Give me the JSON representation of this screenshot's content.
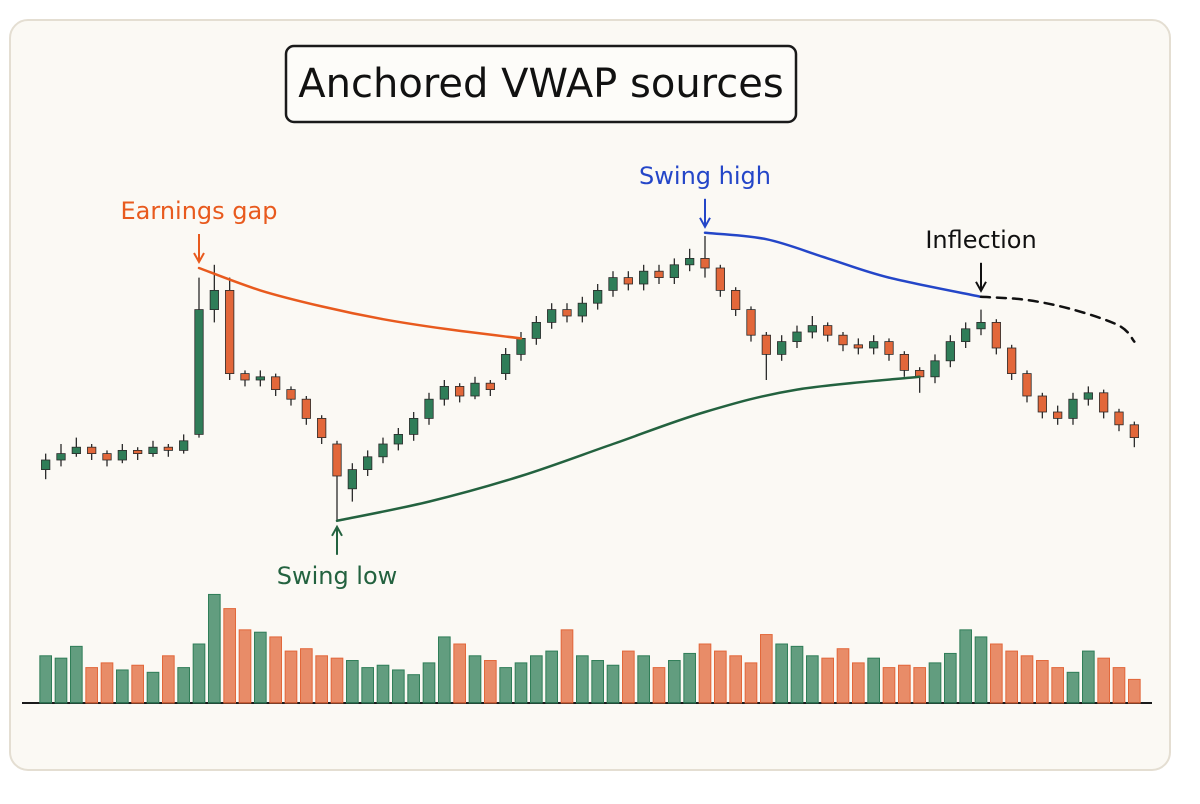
{
  "chart_data": {
    "type": "candlestick",
    "title": "Anchored VWAP sources",
    "up_color": "#2f7d58",
    "down_color": "#e2673a",
    "xlim": [
      -0.5,
      71.5
    ],
    "ylim": [
      0,
      100
    ],
    "open": [
      22,
      25,
      27,
      29,
      27,
      25,
      28,
      27,
      29,
      28,
      33,
      72,
      78,
      52,
      50,
      51,
      47,
      44,
      38,
      30,
      16,
      22,
      26,
      30,
      33,
      38,
      44,
      48,
      45,
      49,
      52,
      58,
      63,
      68,
      72,
      70,
      74,
      78,
      82,
      80,
      84,
      82,
      86,
      88,
      85,
      78,
      72,
      64,
      58,
      62,
      65,
      67,
      64,
      61,
      60,
      62,
      58,
      53,
      51,
      56,
      62,
      66,
      68,
      60,
      52,
      45,
      40,
      38,
      44,
      46,
      40,
      36
    ],
    "high": [
      27,
      30,
      32,
      30,
      28,
      30,
      29,
      31,
      30,
      33,
      82,
      86,
      82,
      53,
      53,
      52,
      48,
      45,
      39,
      31,
      24,
      28,
      32,
      35,
      40,
      46,
      50,
      49,
      51,
      50,
      60,
      65,
      70,
      74,
      74,
      76,
      80,
      84,
      84,
      86,
      86,
      88,
      91,
      95,
      86,
      79,
      73,
      65,
      64,
      67,
      70,
      68,
      65,
      63,
      64,
      63,
      59,
      54,
      58,
      64,
      68,
      72,
      69,
      61,
      53,
      46,
      42,
      46,
      48,
      47,
      41,
      37
    ],
    "low": [
      19,
      23,
      26,
      25,
      23,
      24,
      25,
      26,
      26,
      27,
      32,
      68,
      50,
      48,
      48,
      45,
      42,
      36,
      30,
      6,
      12,
      20,
      24,
      28,
      31,
      36,
      42,
      43,
      44,
      45,
      50,
      56,
      61,
      66,
      68,
      68,
      72,
      76,
      78,
      78,
      80,
      80,
      84,
      82,
      76,
      70,
      62,
      50,
      56,
      60,
      63,
      62,
      59,
      58,
      58,
      56,
      51,
      46,
      49,
      54,
      60,
      64,
      58,
      50,
      43,
      38,
      36,
      36,
      42,
      38,
      34,
      29
    ],
    "close": [
      25,
      27,
      29,
      27,
      25,
      28,
      27,
      29,
      28,
      31,
      72,
      78,
      52,
      50,
      51,
      47,
      44,
      38,
      32,
      20,
      22,
      26,
      30,
      33,
      38,
      44,
      48,
      45,
      49,
      47,
      58,
      63,
      68,
      72,
      70,
      74,
      78,
      82,
      80,
      84,
      82,
      86,
      88,
      85,
      78,
      72,
      64,
      58,
      62,
      65,
      67,
      64,
      61,
      60,
      62,
      58,
      53,
      51,
      56,
      62,
      66,
      68,
      60,
      52,
      45,
      40,
      38,
      44,
      46,
      40,
      36,
      32
    ],
    "volume": {
      "ylim": [
        0,
        100
      ],
      "values": [
        40,
        38,
        48,
        30,
        34,
        28,
        32,
        26,
        40,
        30,
        50,
        92,
        80,
        62,
        60,
        56,
        44,
        46,
        40,
        38,
        36,
        30,
        32,
        28,
        24,
        34,
        56,
        50,
        40,
        36,
        30,
        34,
        40,
        44,
        62,
        40,
        36,
        32,
        44,
        40,
        30,
        36,
        42,
        50,
        44,
        40,
        34,
        58,
        50,
        48,
        40,
        38,
        46,
        34,
        38,
        30,
        32,
        30,
        34,
        42,
        62,
        56,
        50,
        44,
        40,
        36,
        30,
        26,
        44,
        38,
        30,
        20
      ]
    },
    "vwaps": [
      {
        "name": "Earnings gap",
        "color": "#e85a1e",
        "dashed": false,
        "x": [
          10,
          14,
          18,
          22,
          26,
          31
        ],
        "values": [
          85,
          78,
          73,
          69,
          66,
          63
        ]
      },
      {
        "name": "Swing low",
        "color": "#23623f",
        "dashed": false,
        "x": [
          19,
          25,
          31,
          37,
          43,
          49,
          57
        ],
        "values": [
          6,
          12,
          20,
          30,
          40,
          47,
          51
        ]
      },
      {
        "name": "Swing high",
        "color": "#2446c8",
        "dashed": false,
        "x": [
          43,
          47,
          51,
          55,
          61
        ],
        "values": [
          96,
          94,
          88,
          82,
          76
        ]
      },
      {
        "name": "Inflection",
        "color": "#111111",
        "dashed": true,
        "x": [
          61,
          64,
          67,
          70,
          71
        ],
        "values": [
          76,
          75,
          72,
          67,
          62
        ]
      }
    ]
  }
}
